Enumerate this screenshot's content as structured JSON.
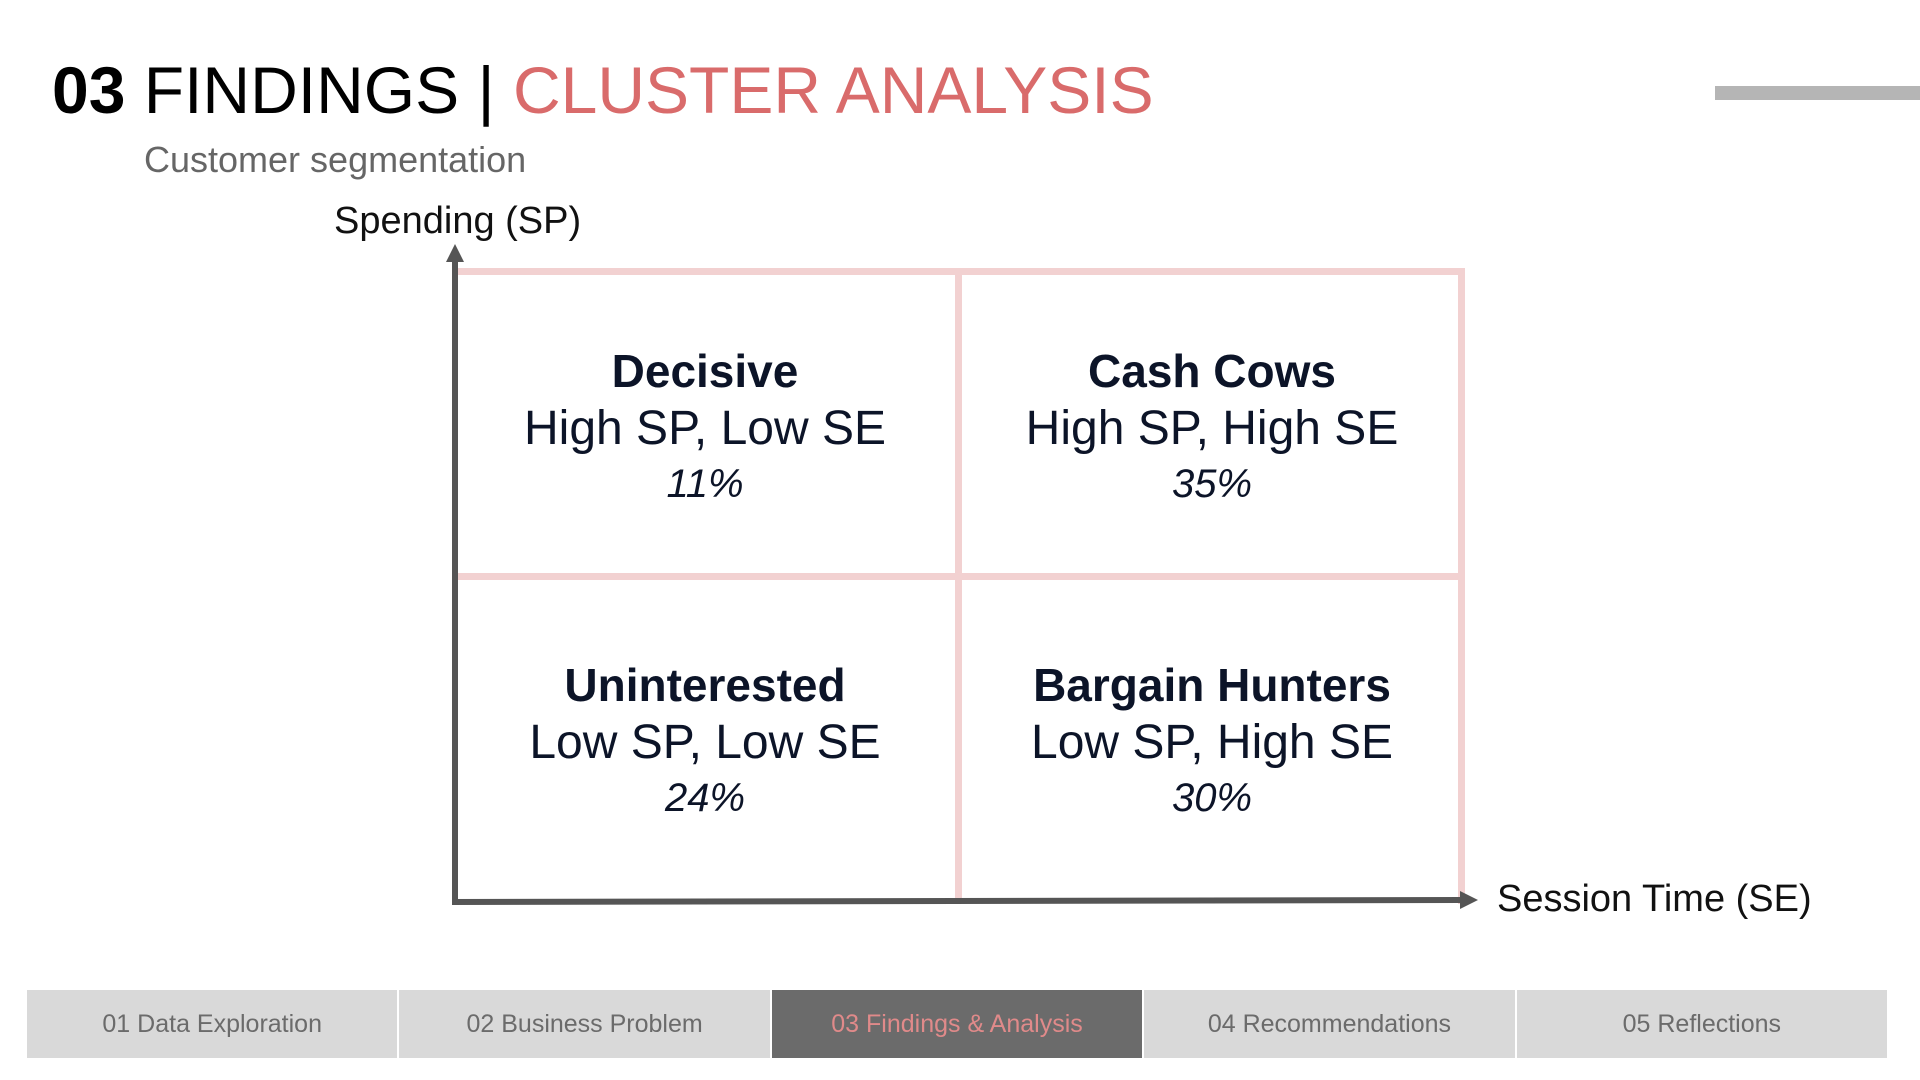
{
  "header": {
    "title_number": "03",
    "title_main": "FINDINGS",
    "title_separator": "|",
    "title_accent": "CLUSTER ANALYSIS",
    "subtitle": "Customer segmentation"
  },
  "axes": {
    "y_label": "Spending (SP)",
    "x_label": "Session Time (SE)"
  },
  "quadrants": {
    "top_left": {
      "name": "Decisive",
      "description": "High SP, Low SE",
      "percent": "11%"
    },
    "top_right": {
      "name": "Cash Cows",
      "description": "High SP, High SE",
      "percent": "35%"
    },
    "bottom_left": {
      "name": "Uninterested",
      "description": "Low SP, Low SE",
      "percent": "24%"
    },
    "bottom_right": {
      "name": "Bargain Hunters",
      "description": "Low SP, High SE",
      "percent": "30%"
    }
  },
  "nav": {
    "tabs": [
      {
        "label": "01 Data Exploration"
      },
      {
        "label": "02 Business Problem"
      },
      {
        "label": "03 Findings & Analysis"
      },
      {
        "label": "04 Recommendations"
      },
      {
        "label": "05 Reflections"
      }
    ],
    "active_index": 2
  },
  "colors": {
    "accent": "#d96b6b",
    "grid": "#f2d1d1",
    "axis": "#555555",
    "nav_bg": "#d9d9d9",
    "nav_active_bg": "#6b6b6b"
  }
}
